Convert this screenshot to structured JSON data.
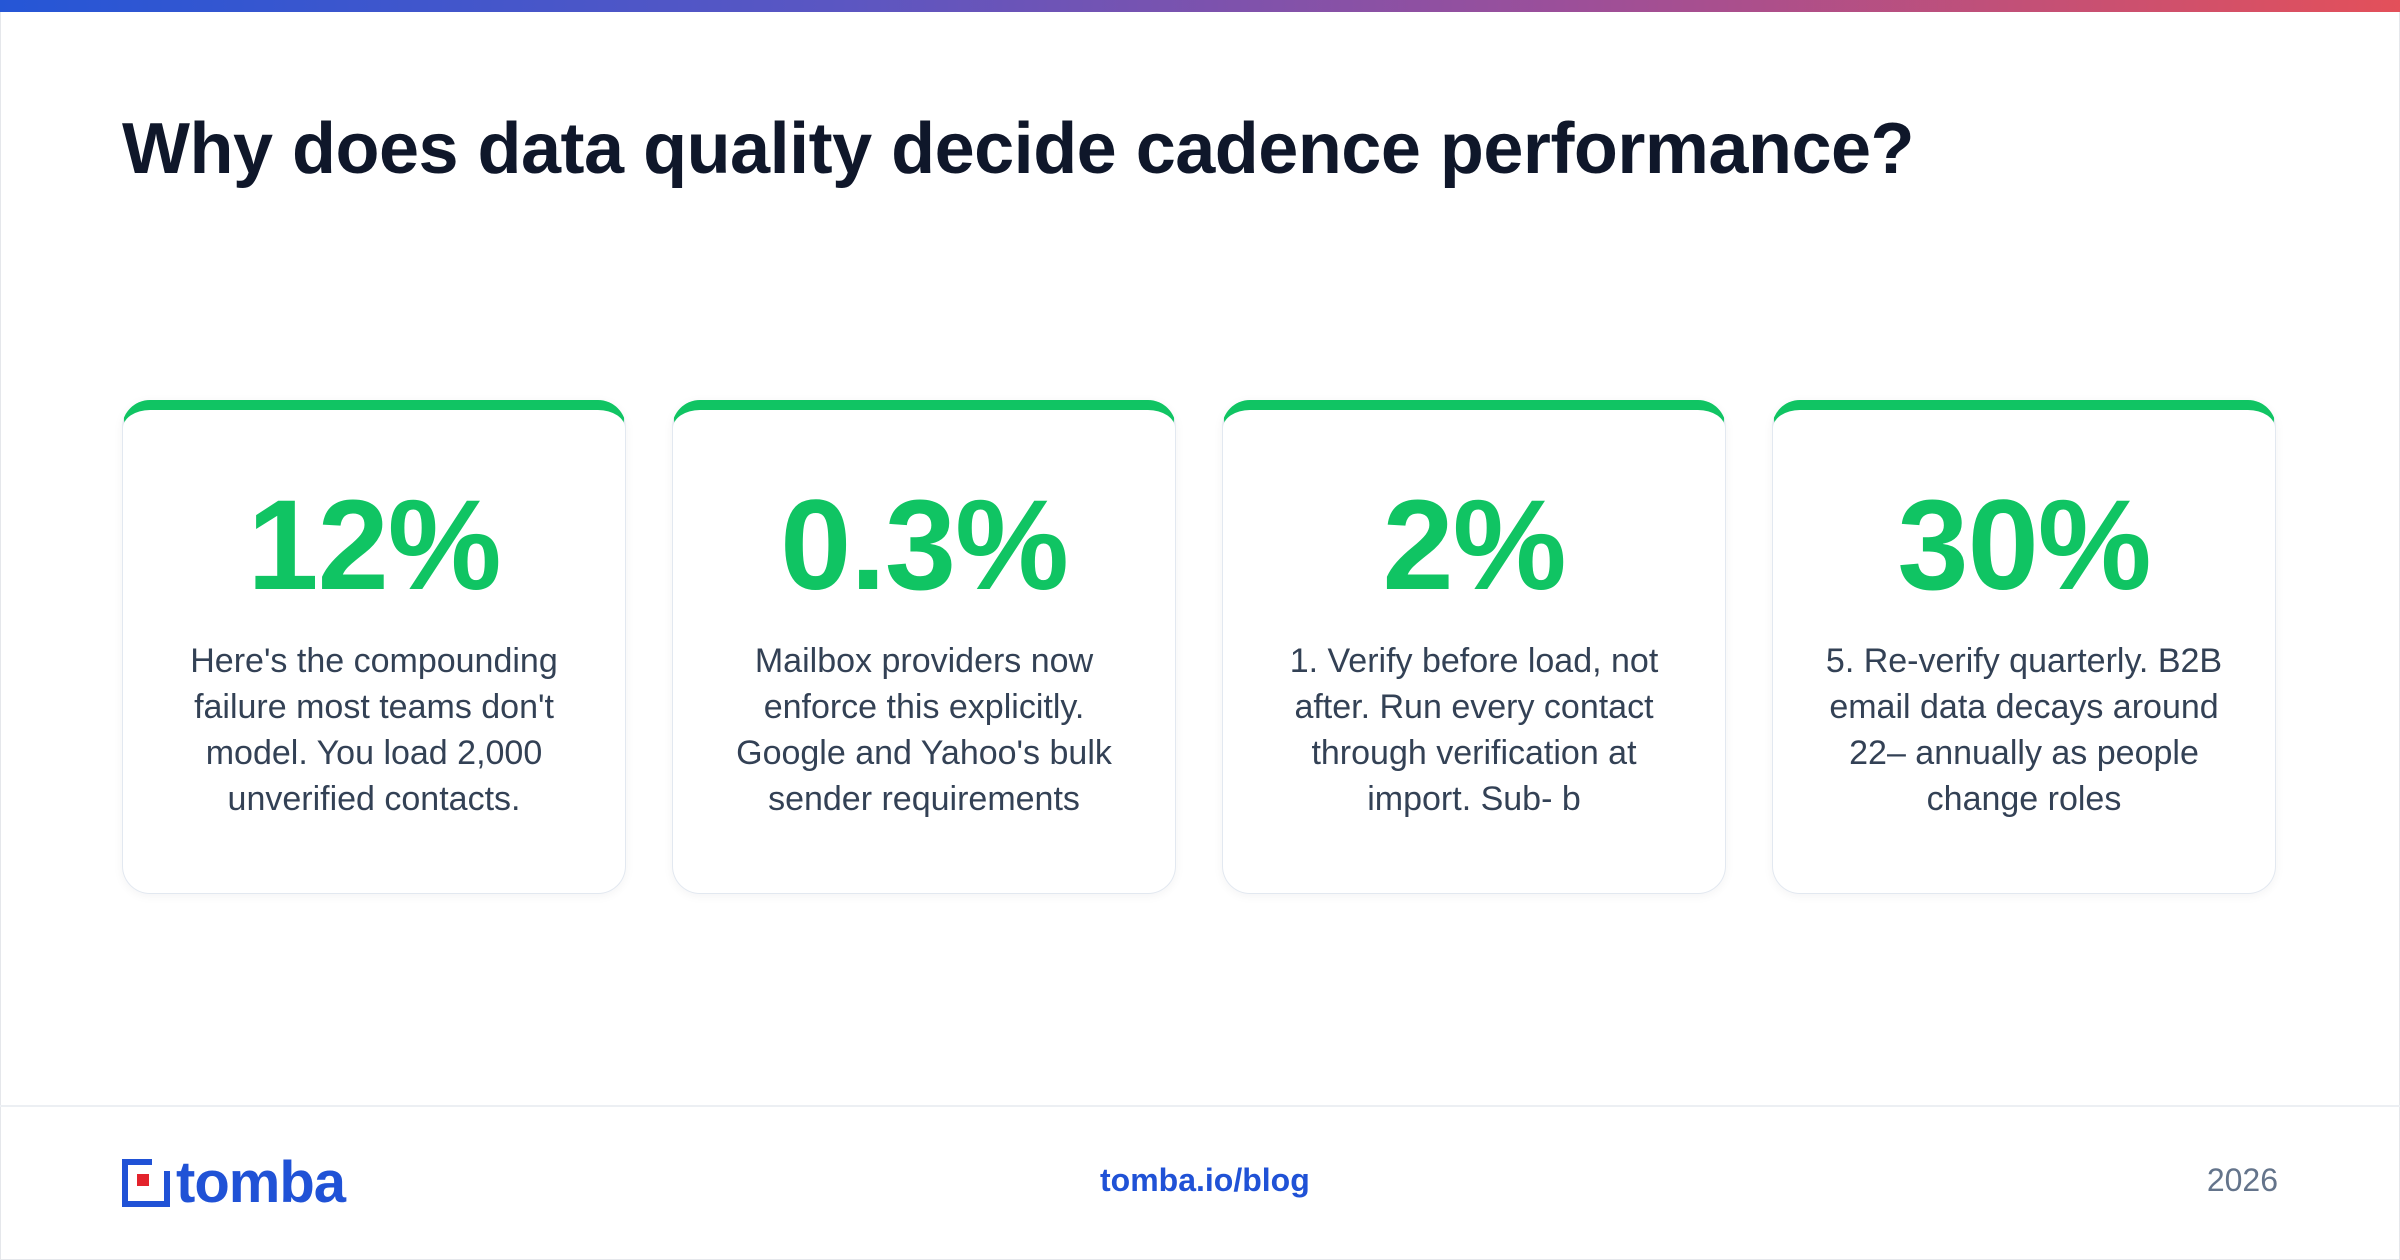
{
  "header": {
    "title": "Why does data quality decide cadence performance?"
  },
  "stats": [
    {
      "value": "12%",
      "description": "Here's the compounding failure most teams don't model. You load 2,000 unverified contacts."
    },
    {
      "value": "0.3%",
      "description": "Mailbox providers now enforce this explicitly. Google and Yahoo's bulk sender requirements"
    },
    {
      "value": "2%",
      "description": "1. Verify before load, not after. Run every contact through verification at import. Sub- b"
    },
    {
      "value": "30%",
      "description": "5. Re-verify quarterly. B2B email data decays around 22– annually as people change roles"
    }
  ],
  "footer": {
    "brand": "tomba",
    "url": "tomba.io/blog",
    "year": "2026"
  },
  "colors": {
    "accent_green": "#10c463",
    "brand_blue": "#2052d6",
    "gradient_start": "#2556d6",
    "gradient_end": "#e3505a"
  },
  "icons": {
    "logo": "tomba-logo-icon"
  }
}
